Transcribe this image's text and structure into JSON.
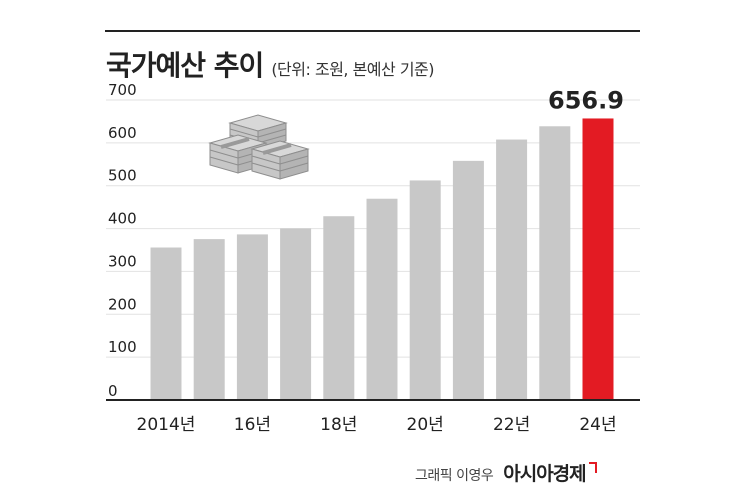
{
  "header": {
    "title": "국가예산 추이",
    "subtitle": "(단위: 조원, 본예산 기준)"
  },
  "footer": {
    "credit": "그래픽 이영우",
    "brand": "아시아경제"
  },
  "icon": {
    "name": "money-stack-icon"
  },
  "chart_data": {
    "type": "bar",
    "title": "국가예산 추이",
    "subtitle": "(단위: 조원, 본예산 기준)",
    "xlabel": "",
    "ylabel": "",
    "ylim": [
      0,
      700
    ],
    "yticks": [
      0,
      100,
      200,
      300,
      400,
      500,
      600,
      700
    ],
    "categories": [
      "2014",
      "2015",
      "2016",
      "2017",
      "2018",
      "2019",
      "2020",
      "2021",
      "2022",
      "2023",
      "2024"
    ],
    "values": [
      355.8,
      375.4,
      386.4,
      400.5,
      428.8,
      469.6,
      512.3,
      558.0,
      607.7,
      638.7,
      656.9
    ],
    "tick_labels": [
      "2014년",
      "",
      "16년",
      "",
      "18년",
      "",
      "20년",
      "",
      "22년",
      "",
      "24년"
    ],
    "highlight_label": "656.9",
    "colors": {
      "bar": "#c8c8c8",
      "highlight": "#e31b23",
      "grid": "#e2e2e2",
      "text": "#222222"
    },
    "grid": true
  }
}
